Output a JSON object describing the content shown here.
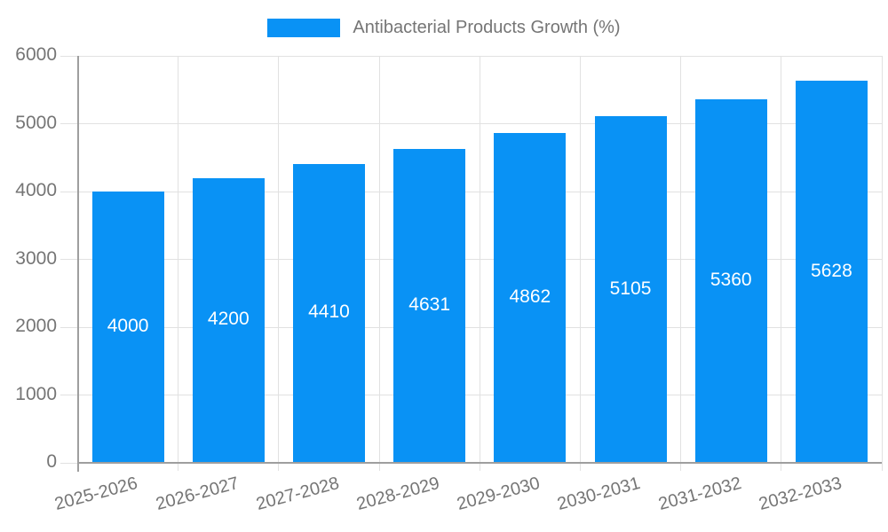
{
  "chart_data": {
    "type": "bar",
    "title": "",
    "legend": {
      "label": "Antibacterial Products Growth (%)",
      "position": "top-center"
    },
    "categories": [
      "2025-2026",
      "2026-2027",
      "2027-2028",
      "2028-2029",
      "2029-2030",
      "2030-2031",
      "2031-2032",
      "2032-2033"
    ],
    "values": [
      4000,
      4200,
      4410,
      4631,
      4862,
      5105,
      5360,
      5628
    ],
    "value_labels_visible": true,
    "xlabel": "",
    "ylabel": "",
    "ylim": [
      0,
      6000
    ],
    "yticks": [
      0,
      1000,
      2000,
      3000,
      4000,
      5000,
      6000
    ],
    "grid": true,
    "colors": {
      "bar": "#0992F5",
      "grid": "#E1E1E1",
      "axis": "#9E9E9E",
      "tick_label_text": "#757575",
      "value_label_text": "#FFFFFF",
      "legend_text": "#757575",
      "background": "#FFFFFF"
    }
  }
}
